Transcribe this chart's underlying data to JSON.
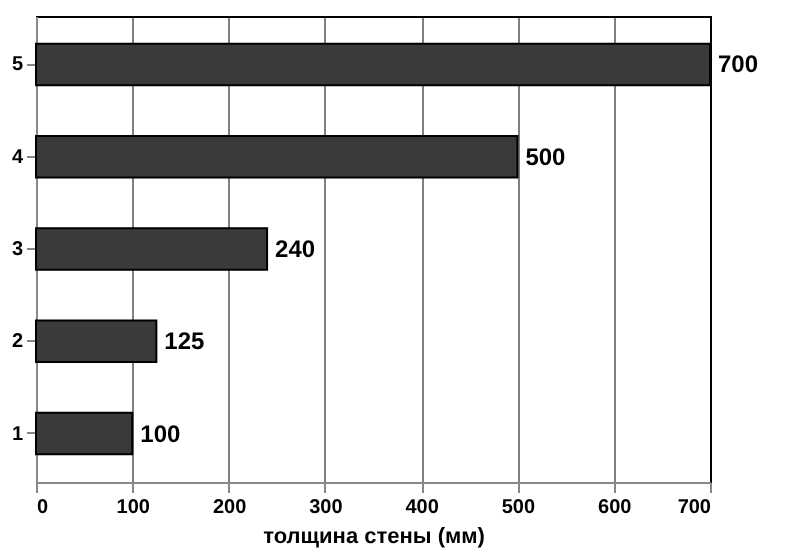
{
  "chart_data": {
    "type": "bar",
    "orientation": "horizontal",
    "categories": [
      "5",
      "4",
      "3",
      "2",
      "1"
    ],
    "values": [
      700,
      500,
      240,
      125,
      100
    ],
    "color": "#3a3a3a",
    "data_labels": true,
    "xlabel": "толщина стены (мм)",
    "xlim": [
      0,
      700
    ],
    "xticks": [
      0,
      100,
      200,
      300,
      400,
      500,
      600,
      700
    ],
    "grid": "x"
  }
}
